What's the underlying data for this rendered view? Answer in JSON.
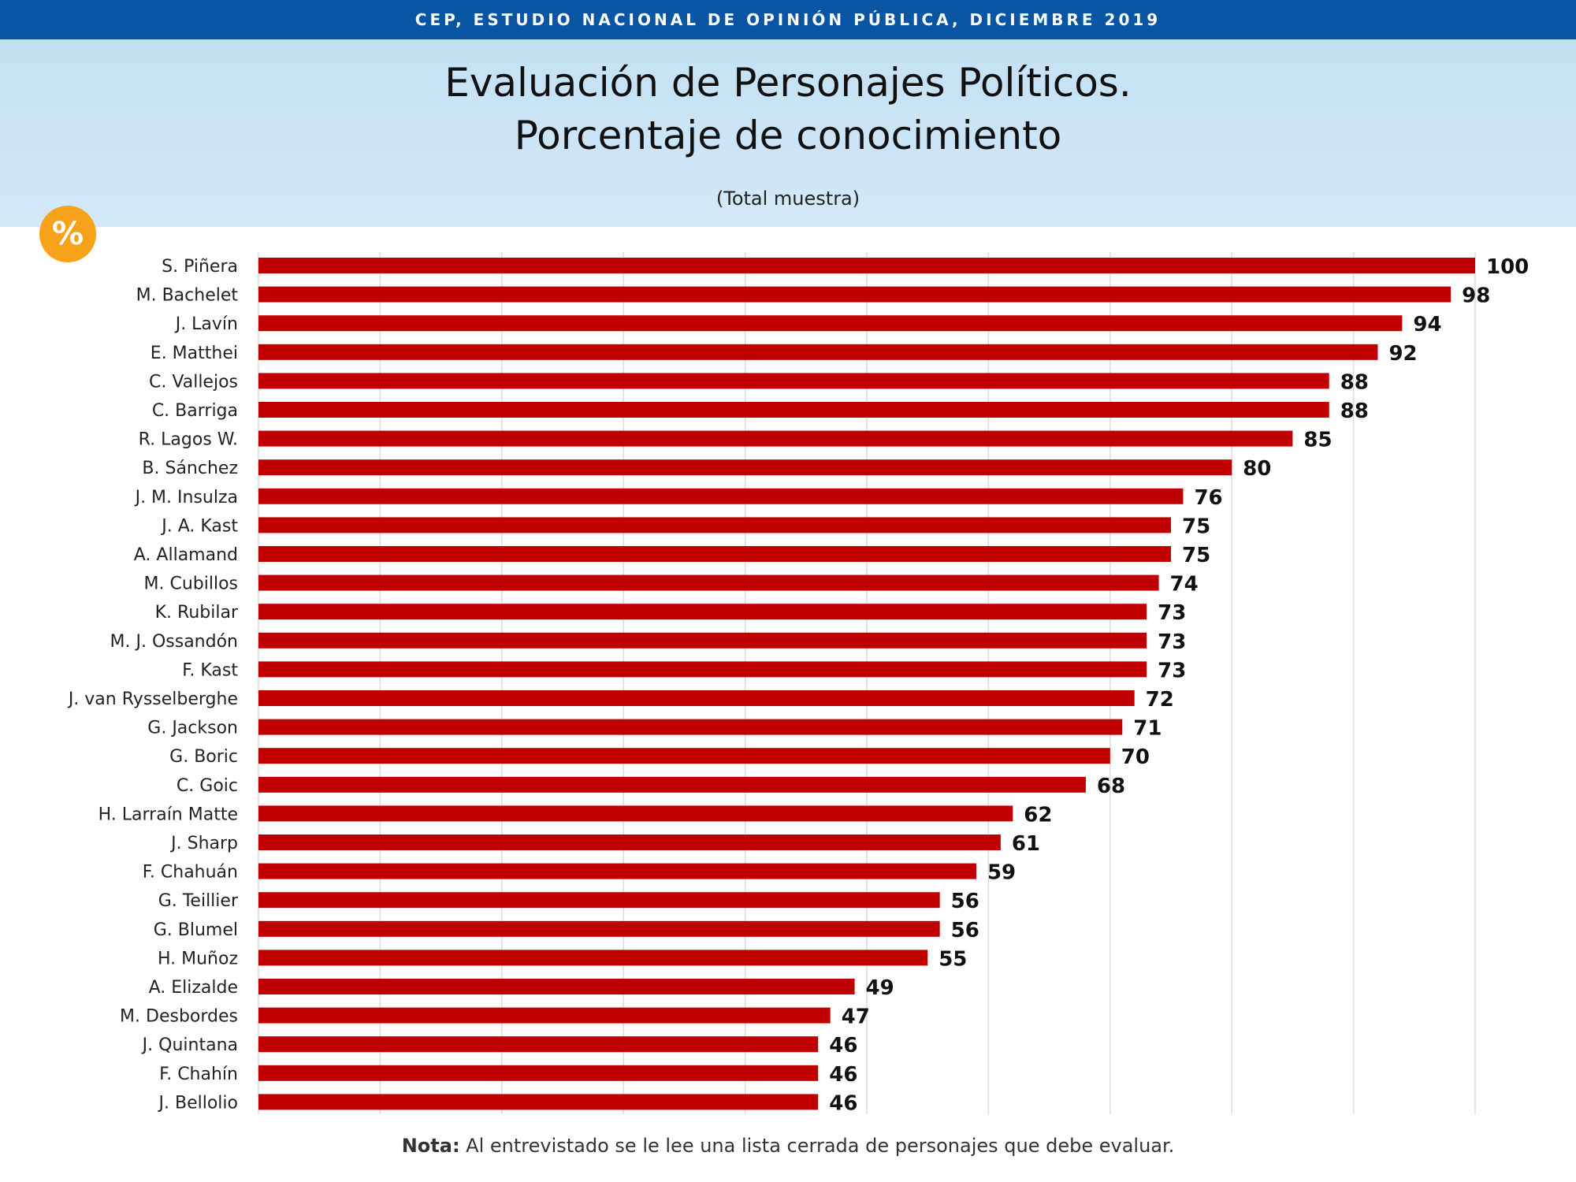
{
  "header": {
    "banner": "CEP, ESTUDIO NACIONAL DE OPINIÓN PÚBLICA, DICIEMBRE 2019",
    "title_line_1": "Evaluación de Personajes Políticos.",
    "title_line_2": "Porcentaje de conocimiento",
    "subtitle": "(Total muestra)",
    "badge": "%"
  },
  "footnote": {
    "label": "Nota:",
    "text": " Al entrevistado se le lee una lista cerrada de personajes que debe evaluar."
  },
  "colors": {
    "bar": "#c00000",
    "banner": "#0a54a4",
    "badge": "#f6a21a",
    "grid": "#dcdcdc"
  },
  "chart_data": {
    "type": "bar",
    "orientation": "horizontal",
    "categories": [
      "S. Piñera",
      "M. Bachelet",
      "J. Lavín",
      "E. Matthei",
      "C. Vallejos",
      "C. Barriga",
      "R. Lagos W.",
      "B. Sánchez",
      "J. M. Insulza",
      "J. A. Kast",
      "A. Allamand",
      "M. Cubillos",
      "K. Rubilar",
      "M. J. Ossandón",
      "F. Kast",
      "J. van Rysselberghe",
      "G. Jackson",
      "G. Boric",
      "C. Goic",
      "H. Larraín Matte",
      "J. Sharp",
      "F. Chahuán",
      "G. Teillier",
      "G. Blumel",
      "H. Muñoz",
      "A. Elizalde",
      "M. Desbordes",
      "J. Quintana",
      "F. Chahín",
      "J. Bellolio"
    ],
    "values": [
      100,
      98,
      94,
      92,
      88,
      88,
      85,
      80,
      76,
      75,
      75,
      74,
      73,
      73,
      73,
      72,
      71,
      70,
      68,
      62,
      61,
      59,
      56,
      56,
      55,
      49,
      47,
      46,
      46,
      46
    ],
    "xlim": [
      0,
      100
    ],
    "grid_step": 10,
    "grid": true,
    "title": "Evaluación de Personajes Políticos. Porcentaje de conocimiento",
    "subtitle": "(Total muestra)",
    "xlabel": "",
    "ylabel": ""
  }
}
